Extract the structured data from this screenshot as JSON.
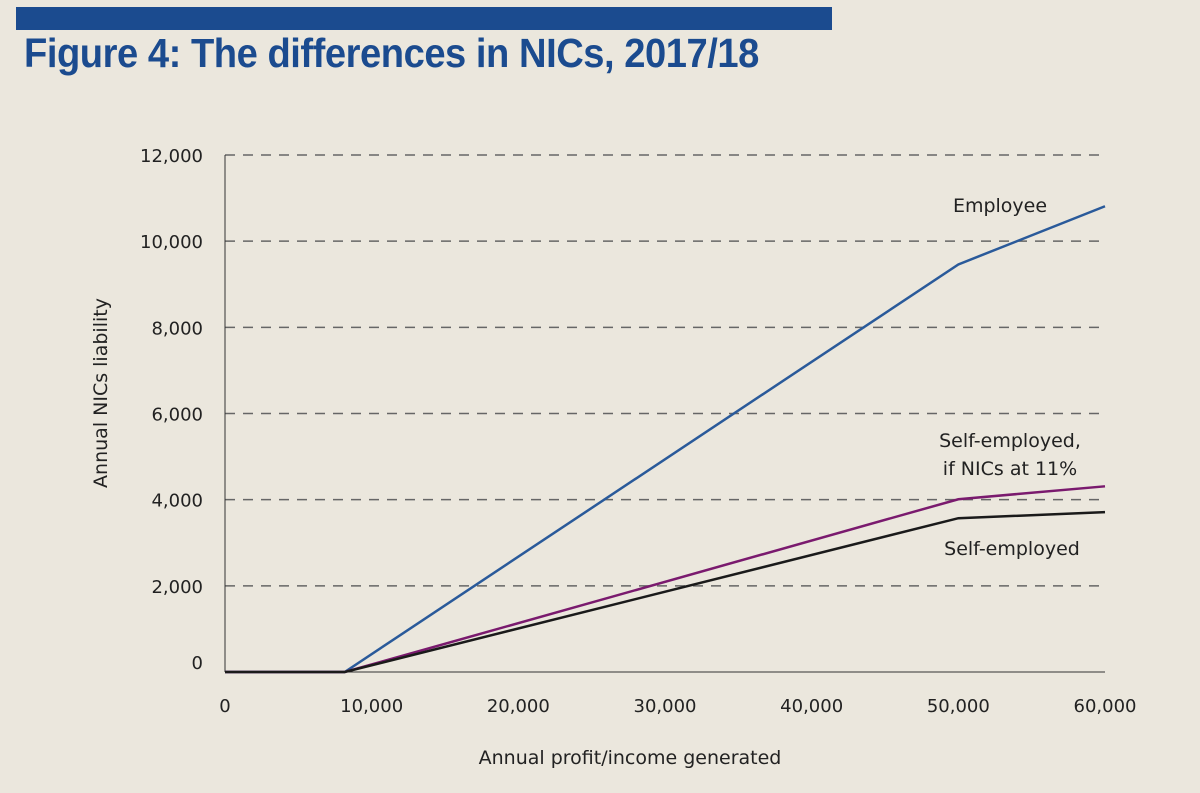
{
  "chart_data": {
    "type": "line",
    "title": "Figure 4: The differences in NICs, 2017/18",
    "xlabel": "Annual profit/income generated",
    "ylabel": "Annual NICs liability",
    "xlim": [
      0,
      60000
    ],
    "ylim": [
      0,
      12000
    ],
    "xticks": [
      0,
      10000,
      20000,
      30000,
      40000,
      50000,
      60000
    ],
    "xtick_labels": [
      "0",
      "10,000",
      "20,000",
      "30,000",
      "40,000",
      "50,000",
      "60,000"
    ],
    "yticks": [
      0,
      2000,
      4000,
      6000,
      8000,
      10000,
      12000
    ],
    "ytick_labels": [
      "0",
      "2,000",
      "4,000",
      "6,000",
      "8,000",
      "10,000",
      "12,000"
    ],
    "grid": "horizontal dashed",
    "series": [
      {
        "name": "Employee",
        "label_lines": [
          "Employee"
        ],
        "color": "#2a5a9a",
        "x": [
          0,
          8164,
          50000,
          60000
        ],
        "y": [
          0,
          0,
          9460,
          10810
        ]
      },
      {
        "name": "Self-employed, if NICs at 11%",
        "label_lines": [
          "Self-employed,",
          "if NICs at 11%"
        ],
        "color": "#7a1a6e",
        "x": [
          0,
          8164,
          50000,
          60000
        ],
        "y": [
          0,
          0,
          4010,
          4310
        ]
      },
      {
        "name": "Self-employed",
        "label_lines": [
          "Self-employed"
        ],
        "color": "#1a1a1a",
        "x": [
          0,
          8164,
          50000,
          60000
        ],
        "y": [
          0,
          0,
          3570,
          3710
        ]
      }
    ]
  }
}
